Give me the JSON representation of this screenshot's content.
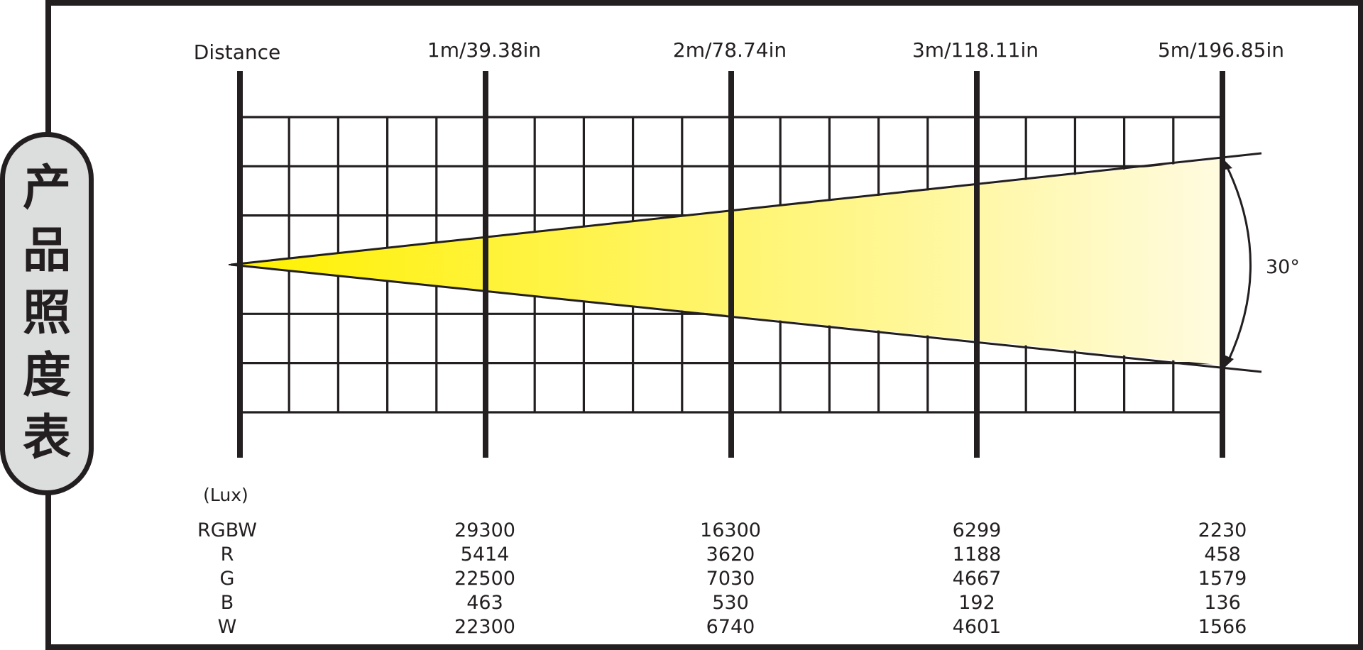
{
  "panel_title": {
    "chars": [
      "产",
      "品",
      "照",
      "度",
      "表"
    ]
  },
  "header": {
    "distance_label": "Distance",
    "distances": [
      "1m/39.38in",
      "2m/78.74in",
      "3m/118.11in",
      "5m/196.85in"
    ]
  },
  "beam": {
    "angle_label": "30°",
    "angle_deg": 30,
    "colors": {
      "start": "#fff200",
      "end": "#fffbe0",
      "line": "#231f20"
    }
  },
  "table": {
    "unit_label": "(Lux)",
    "rows": [
      {
        "name": "RGBW",
        "values": [
          "29300",
          "16300",
          "6299",
          "2230"
        ]
      },
      {
        "name": "R",
        "values": [
          "5414",
          "3620",
          "1188",
          "458"
        ]
      },
      {
        "name": "G",
        "values": [
          "22500",
          "7030",
          "4667",
          "1579"
        ]
      },
      {
        "name": "B",
        "values": [
          "463",
          "530",
          "192",
          "136"
        ]
      },
      {
        "name": "W",
        "values": [
          "22300",
          "6740",
          "4601",
          "1566"
        ]
      }
    ]
  }
}
